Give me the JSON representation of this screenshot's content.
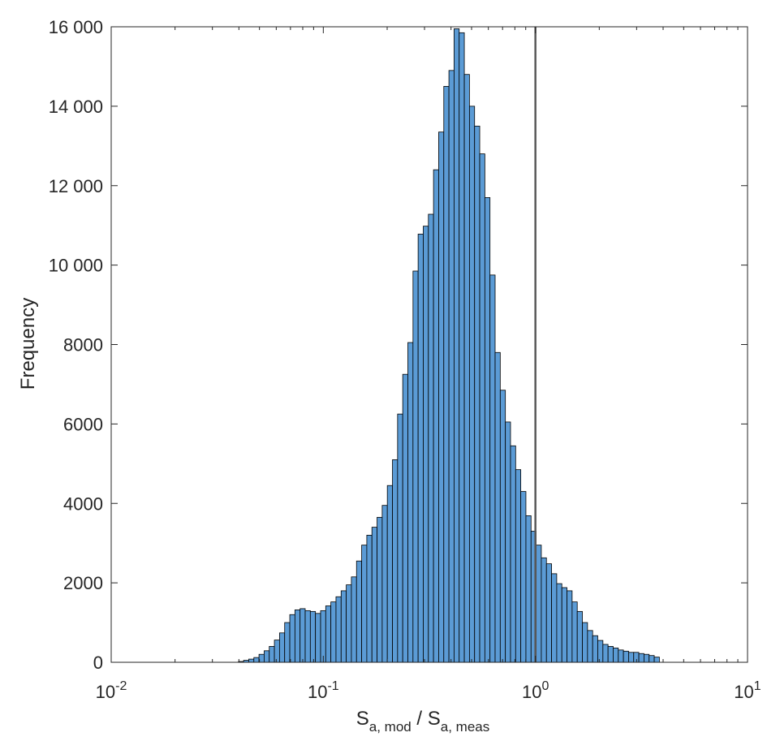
{
  "chart_data": {
    "type": "bar",
    "xscale": "log",
    "xlim": [
      0.01,
      10
    ],
    "ylim": [
      0,
      16000
    ],
    "xlabel": {
      "parts": [
        {
          "text": "S",
          "sub": false
        },
        {
          "text": "a, mod",
          "sub": true
        },
        {
          "text": " / S",
          "sub": false
        },
        {
          "text": "a, meas",
          "sub": true
        }
      ]
    },
    "ylabel": "Frequency",
    "y_ticks": [
      0,
      2000,
      4000,
      6000,
      8000,
      10000,
      12000,
      14000,
      16000
    ],
    "y_tick_labels": [
      "0",
      "2000",
      "4000",
      "6000",
      "8000",
      "10 000",
      "12 000",
      "14 000",
      "16 000"
    ],
    "x_ticks": [
      0.01,
      0.1,
      1,
      10
    ],
    "x_tick_labels": [
      {
        "base": "10",
        "exp": "-2"
      },
      {
        "base": "10",
        "exp": "-1"
      },
      {
        "base": "10",
        "exp": "0"
      },
      {
        "base": "10",
        "exp": "1"
      }
    ],
    "bin_log_start": -1.4,
    "bin_log_width": 0.0242,
    "values": [
      20,
      50,
      80,
      120,
      200,
      290,
      400,
      560,
      740,
      1000,
      1200,
      1320,
      1350,
      1300,
      1280,
      1230,
      1300,
      1420,
      1520,
      1650,
      1800,
      1950,
      2150,
      2550,
      2950,
      3200,
      3400,
      3650,
      3950,
      4450,
      5100,
      6250,
      7250,
      8050,
      9850,
      10780,
      10980,
      11280,
      12400,
      13350,
      14500,
      14900,
      15950,
      15850,
      14800,
      14000,
      13500,
      12800,
      11700,
      9750,
      7800,
      6850,
      6050,
      5450,
      4850,
      4300,
      3690,
      3300,
      2950,
      2630,
      2480,
      2230,
      1980,
      1880,
      1800,
      1520,
      1280,
      1000,
      800,
      670,
      550,
      450,
      400,
      360,
      310,
      280,
      250,
      250,
      220,
      200,
      170,
      130
    ],
    "reference_line_x": 1,
    "grid": false,
    "box": true,
    "colors": {
      "bar_fill": "#5b9bd5",
      "bar_edge": "#000000",
      "reference_line": "#595959",
      "axes": "#262626"
    }
  }
}
